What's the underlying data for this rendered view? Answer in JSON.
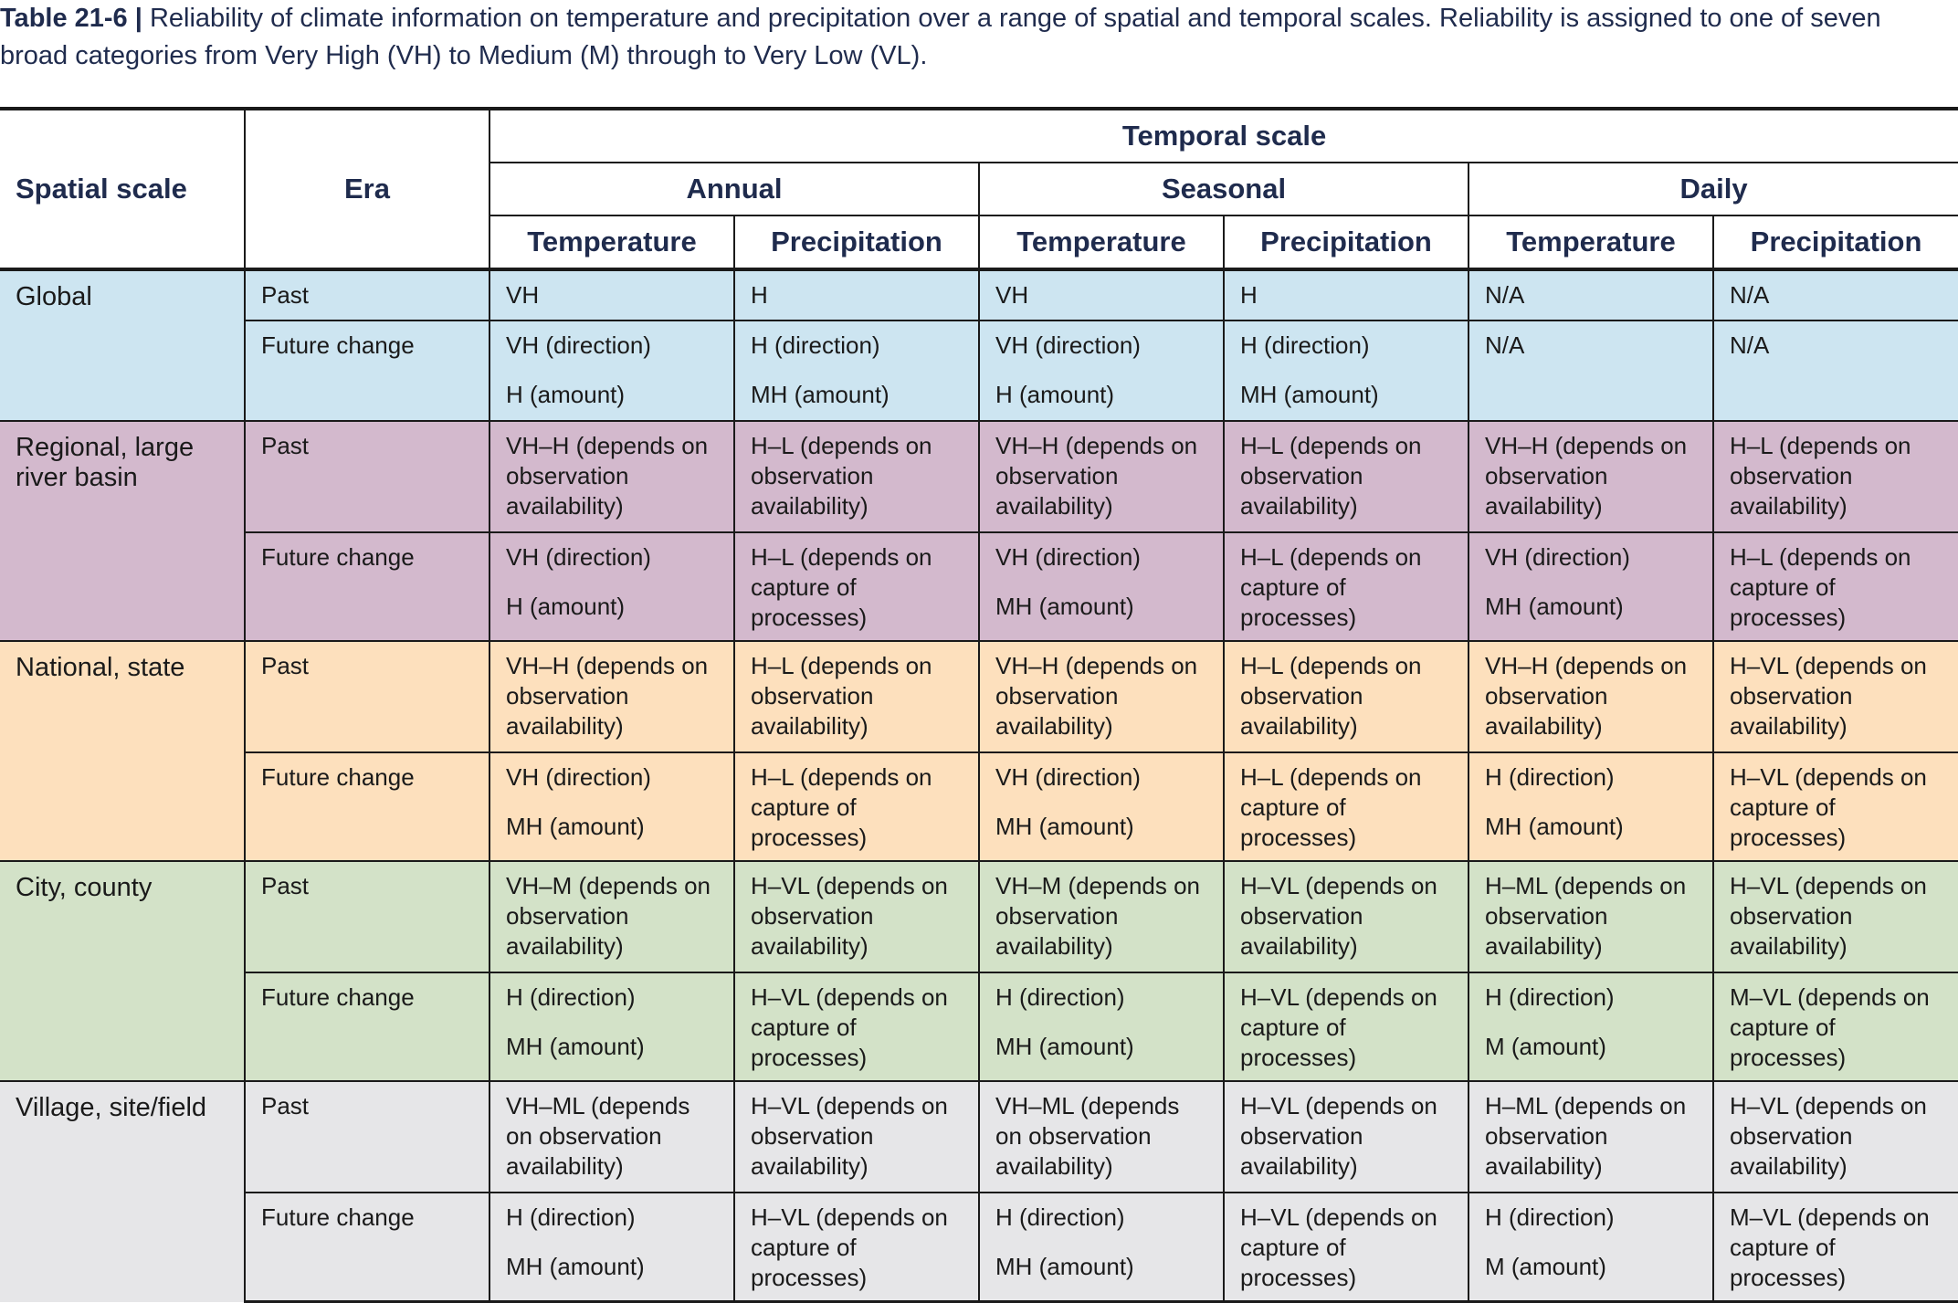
{
  "caption": {
    "label": "Table 21-6 |",
    "text": "Reliability of climate information on temperature and precipitation over a range of spatial and temporal scales. Reliability is assigned to one of seven broad categories from Very High (VH) to Medium (M) through to Very Low (VL)."
  },
  "headers": {
    "spatial_scale": "Spatial scale",
    "era": "Era",
    "temporal_scale": "Temporal scale",
    "annual": "Annual",
    "seasonal": "Seasonal",
    "daily": "Daily",
    "temperature": "Temperature",
    "precipitation": "Precipitation"
  },
  "rows": {
    "global": {
      "name": "Global",
      "past": {
        "era": "Past",
        "cells": [
          "VH",
          "H",
          "VH",
          "H",
          "N/A",
          "N/A"
        ]
      },
      "future": {
        "era": "Future change",
        "cells": [
          [
            "VH (direction)",
            "H (amount)"
          ],
          [
            "H (direction)",
            "MH (amount)"
          ],
          [
            "VH (direction)",
            "H (amount)"
          ],
          [
            "H (direction)",
            "MH (amount)"
          ],
          [
            "N/A",
            ""
          ],
          [
            "N/A",
            ""
          ]
        ]
      }
    },
    "regional": {
      "name": "Regional, large river basin",
      "past": {
        "era": "Past",
        "cells": [
          "VH–H (depends on observation availability)",
          "H–L (depends on observation availability)",
          "VH–H (depends on observation availability)",
          "H–L (depends on observation availability)",
          "VH–H (depends on observation availability)",
          "H–L (depends on observation availability)"
        ]
      },
      "future": {
        "era": "Future change",
        "cells": [
          [
            "VH (direction)",
            "H (amount)"
          ],
          [
            "H–L (depends on capture of processes)",
            ""
          ],
          [
            "VH (direction)",
            "MH (amount)"
          ],
          [
            "H–L (depends on capture of processes)",
            ""
          ],
          [
            "VH (direction)",
            "MH (amount)"
          ],
          [
            "H–L (depends on capture of processes)",
            ""
          ]
        ]
      }
    },
    "national": {
      "name": "National, state",
      "past": {
        "era": "Past",
        "cells": [
          "VH–H (depends on observation availability)",
          "H–L (depends on observation availability)",
          "VH–H (depends on observation availability)",
          "H–L (depends on observation availability)",
          "VH–H (depends on observation availability)",
          "H–VL (depends on observation availability)"
        ]
      },
      "future": {
        "era": "Future change",
        "cells": [
          [
            "VH (direction)",
            "MH (amount)"
          ],
          [
            "H–L (depends on capture of processes)",
            ""
          ],
          [
            "VH (direction)",
            "MH (amount)"
          ],
          [
            "H–L (depends on capture of processes)",
            ""
          ],
          [
            "H (direction)",
            "MH (amount)"
          ],
          [
            "H–VL (depends on capture of processes)",
            ""
          ]
        ]
      }
    },
    "city": {
      "name": "City, county",
      "past": {
        "era": "Past",
        "cells": [
          "VH–M (depends on observation availability)",
          "H–VL (depends on observation availability)",
          "VH–M (depends on observation availability)",
          "H–VL (depends on observation availability)",
          "H–ML (depends on observation availability)",
          "H–VL (depends on observation availability)"
        ]
      },
      "future": {
        "era": "Future change",
        "cells": [
          [
            "H (direction)",
            "MH (amount)"
          ],
          [
            "H–VL (depends on capture of processes)",
            ""
          ],
          [
            "H (direction)",
            "MH (amount)"
          ],
          [
            "H–VL (depends on capture of processes)",
            ""
          ],
          [
            "H (direction)",
            "M (amount)"
          ],
          [
            "M–VL (depends on capture of processes)",
            ""
          ]
        ]
      }
    },
    "village": {
      "name": "Village, site/field",
      "past": {
        "era": "Past",
        "cells": [
          "VH–ML (depends on observation availability)",
          "H–VL (depends on observation availability)",
          "VH–ML (depends on observation availability)",
          "H–VL (depends on observation availability)",
          "H–ML (depends on observation availability)",
          "H–VL (depends on observation availability)"
        ]
      },
      "future": {
        "era": "Future change",
        "cells": [
          [
            "H (direction)",
            "MH (amount)"
          ],
          [
            "H–VL (depends on capture of processes)",
            ""
          ],
          [
            "H (direction)",
            "MH (amount)"
          ],
          [
            "H–VL (depends on capture of processes)",
            ""
          ],
          [
            "H (direction)",
            "M (amount)"
          ],
          [
            "M–VL (depends on capture of processes)",
            ""
          ]
        ]
      }
    }
  }
}
